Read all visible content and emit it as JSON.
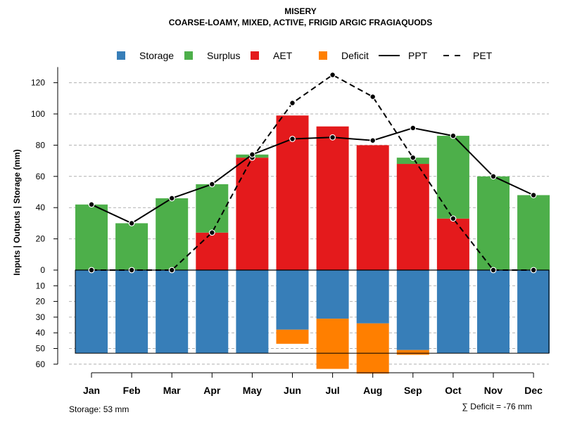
{
  "chart_data": {
    "type": "bar",
    "title": "MISERY",
    "subtitle": "COARSE-LOAMY, MIXED, ACTIVE, FRIGID ARGIC FRAGIAQUODS",
    "ylabel": "Inputs | Outputs | Storage    (mm)",
    "categories": [
      "Jan",
      "Feb",
      "Mar",
      "Apr",
      "May",
      "Jun",
      "Jul",
      "Aug",
      "Sep",
      "Oct",
      "Nov",
      "Dec"
    ],
    "ylim_top": [
      0,
      130
    ],
    "ylim_bottom": [
      0,
      60
    ],
    "yticks_top": [
      "0",
      "20",
      "40",
      "60",
      "80",
      "100",
      "120"
    ],
    "yticks_bottom": [
      "10",
      "20",
      "30",
      "40",
      "50",
      "60"
    ],
    "legend": [
      {
        "key": "storage",
        "label": "Storage",
        "color": "#377EB8",
        "type": "box"
      },
      {
        "key": "surplus",
        "label": "Surplus",
        "color": "#4DAF4A",
        "type": "box"
      },
      {
        "key": "aet",
        "label": "AET",
        "color": "#E41A1C",
        "type": "box"
      },
      {
        "key": "deficit",
        "label": "Deficit",
        "color": "#FF7F00",
        "type": "box"
      },
      {
        "key": "ppt",
        "label": "PPT",
        "color": "#000000",
        "type": "solid"
      },
      {
        "key": "pet",
        "label": "PET",
        "color": "#000000",
        "type": "dashed"
      }
    ],
    "series": {
      "aet": [
        0,
        0,
        0,
        24,
        72,
        99,
        92,
        80,
        68,
        33,
        0,
        0
      ],
      "surplus": [
        42,
        30,
        46,
        31,
        2,
        0,
        0,
        0,
        4,
        53,
        60,
        48
      ],
      "storage": [
        53,
        53,
        53,
        53,
        53,
        38,
        31,
        34,
        51,
        53,
        53,
        53
      ],
      "deficit": [
        0,
        0,
        0,
        0,
        0,
        9,
        32,
        32,
        3,
        0,
        0,
        0
      ],
      "ppt": [
        42,
        30,
        46,
        55,
        74,
        84,
        85,
        83,
        91,
        86,
        60,
        48
      ],
      "pet": [
        0,
        0,
        0,
        24,
        72,
        107,
        125,
        111,
        72,
        33,
        0,
        0
      ]
    },
    "storage_capacity": 53
  },
  "notes": {
    "storage": "Storage: 53 mm",
    "deficit_sum": "∑ Deficit = -76 mm"
  }
}
